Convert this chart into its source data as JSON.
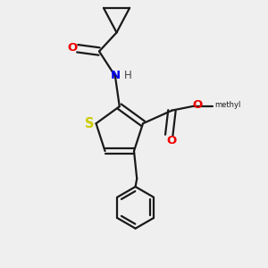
{
  "bg_color": "#efefef",
  "bond_color": "#1a1a1a",
  "S_color": "#cccc00",
  "N_color": "#0000ee",
  "O_color": "#ee0000",
  "line_width": 1.6,
  "font_size": 9.5,
  "xlim": [
    0,
    1
  ],
  "ylim": [
    0,
    1
  ]
}
